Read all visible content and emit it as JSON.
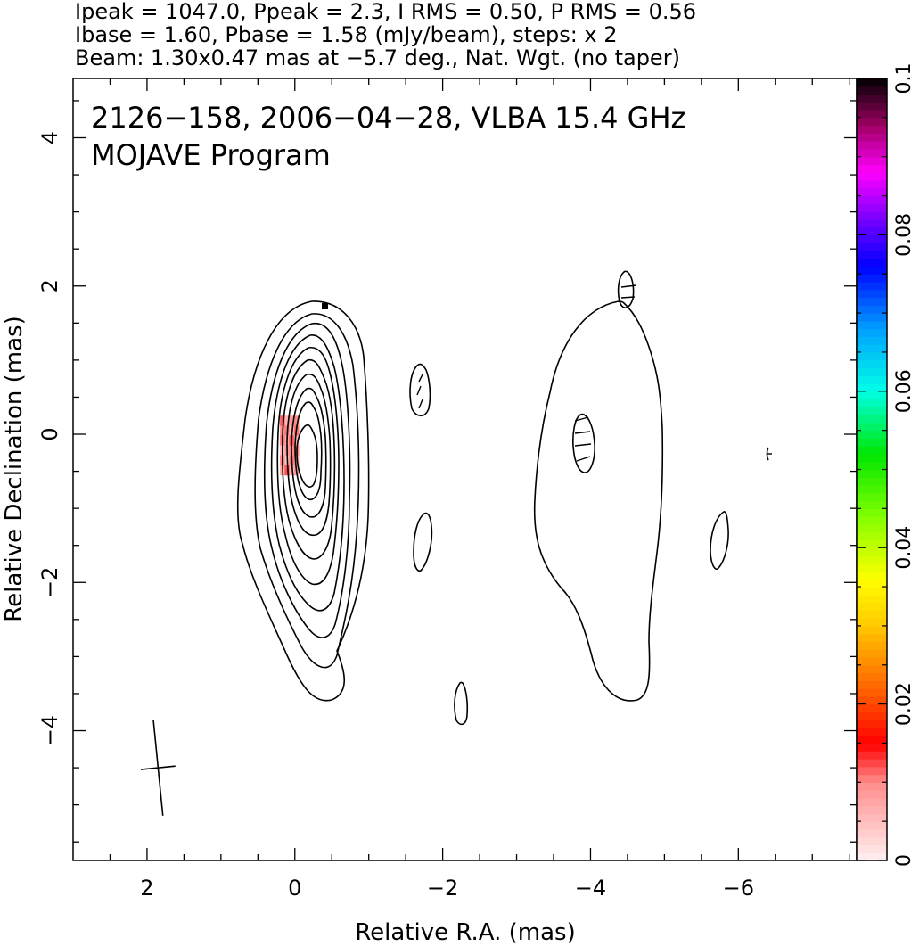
{
  "header": {
    "line1": "Ipeak = 1047.0, Ppeak = 2.3, I RMS = 0.50, P RMS = 0.56",
    "line2": "Ibase = 1.60, Pbase = 1.58 (mJy/beam), steps: x 2",
    "line3": "Beam: 1.30x0.47 mas at −5.7 deg., Nat. Wgt. (no taper)"
  },
  "chart_data": {
    "type": "contour",
    "title": "2126−158, 2006−04−28, VLBA 15.4 GHz",
    "subtitle": "MOJAVE Program",
    "xlabel": "Relative R.A. (mas)",
    "ylabel": "Relative Declination (mas)",
    "xlim": [
      3.0,
      -7.6
    ],
    "ylim": [
      -5.75,
      4.8
    ],
    "x_ticks": [
      2,
      0,
      -2,
      -4,
      -6
    ],
    "x_tick_labels": [
      "2",
      "0",
      "−2",
      "−4",
      "−6"
    ],
    "y_ticks": [
      4,
      2,
      0,
      -2,
      -4
    ],
    "y_tick_labels": [
      "4",
      "2",
      "0",
      "−2",
      "−4"
    ],
    "contour_levels_mJy": [
      1.6,
      3.2,
      6.4,
      12.8,
      25.6,
      51.2,
      102.4,
      204.8,
      409.6,
      819.2
    ],
    "core": {
      "ra": -0.1,
      "dec": -0.3
    },
    "secondary_blobs": [
      {
        "ra": -1.7,
        "dec": 0.55
      },
      {
        "ra": -1.75,
        "dec": -1.45
      },
      {
        "ra": -2.25,
        "dec": -3.65
      },
      {
        "ra": -3.9,
        "dec": -0.15
      },
      {
        "ra": -4.45,
        "dec": 1.9
      },
      {
        "ra": -5.75,
        "dec": -1.45
      }
    ],
    "beam": {
      "major_mas": 1.3,
      "minor_mas": 0.47,
      "pa_deg": -5.7,
      "center_ra": 1.85,
      "center_dec": -4.5
    },
    "polarization_pixels": {
      "ra_range": [
        0.2,
        -0.05
      ],
      "dec_range": [
        0.25,
        -0.55
      ],
      "fractional": 0.01
    },
    "colorbar": {
      "min": 0,
      "max": 0.1,
      "ticks": [
        0,
        0.02,
        0.04,
        0.06,
        0.08,
        0.1
      ],
      "tick_labels": [
        "0",
        "0.02",
        "0.04",
        "0.06",
        "0.08",
        "0.1"
      ]
    }
  }
}
